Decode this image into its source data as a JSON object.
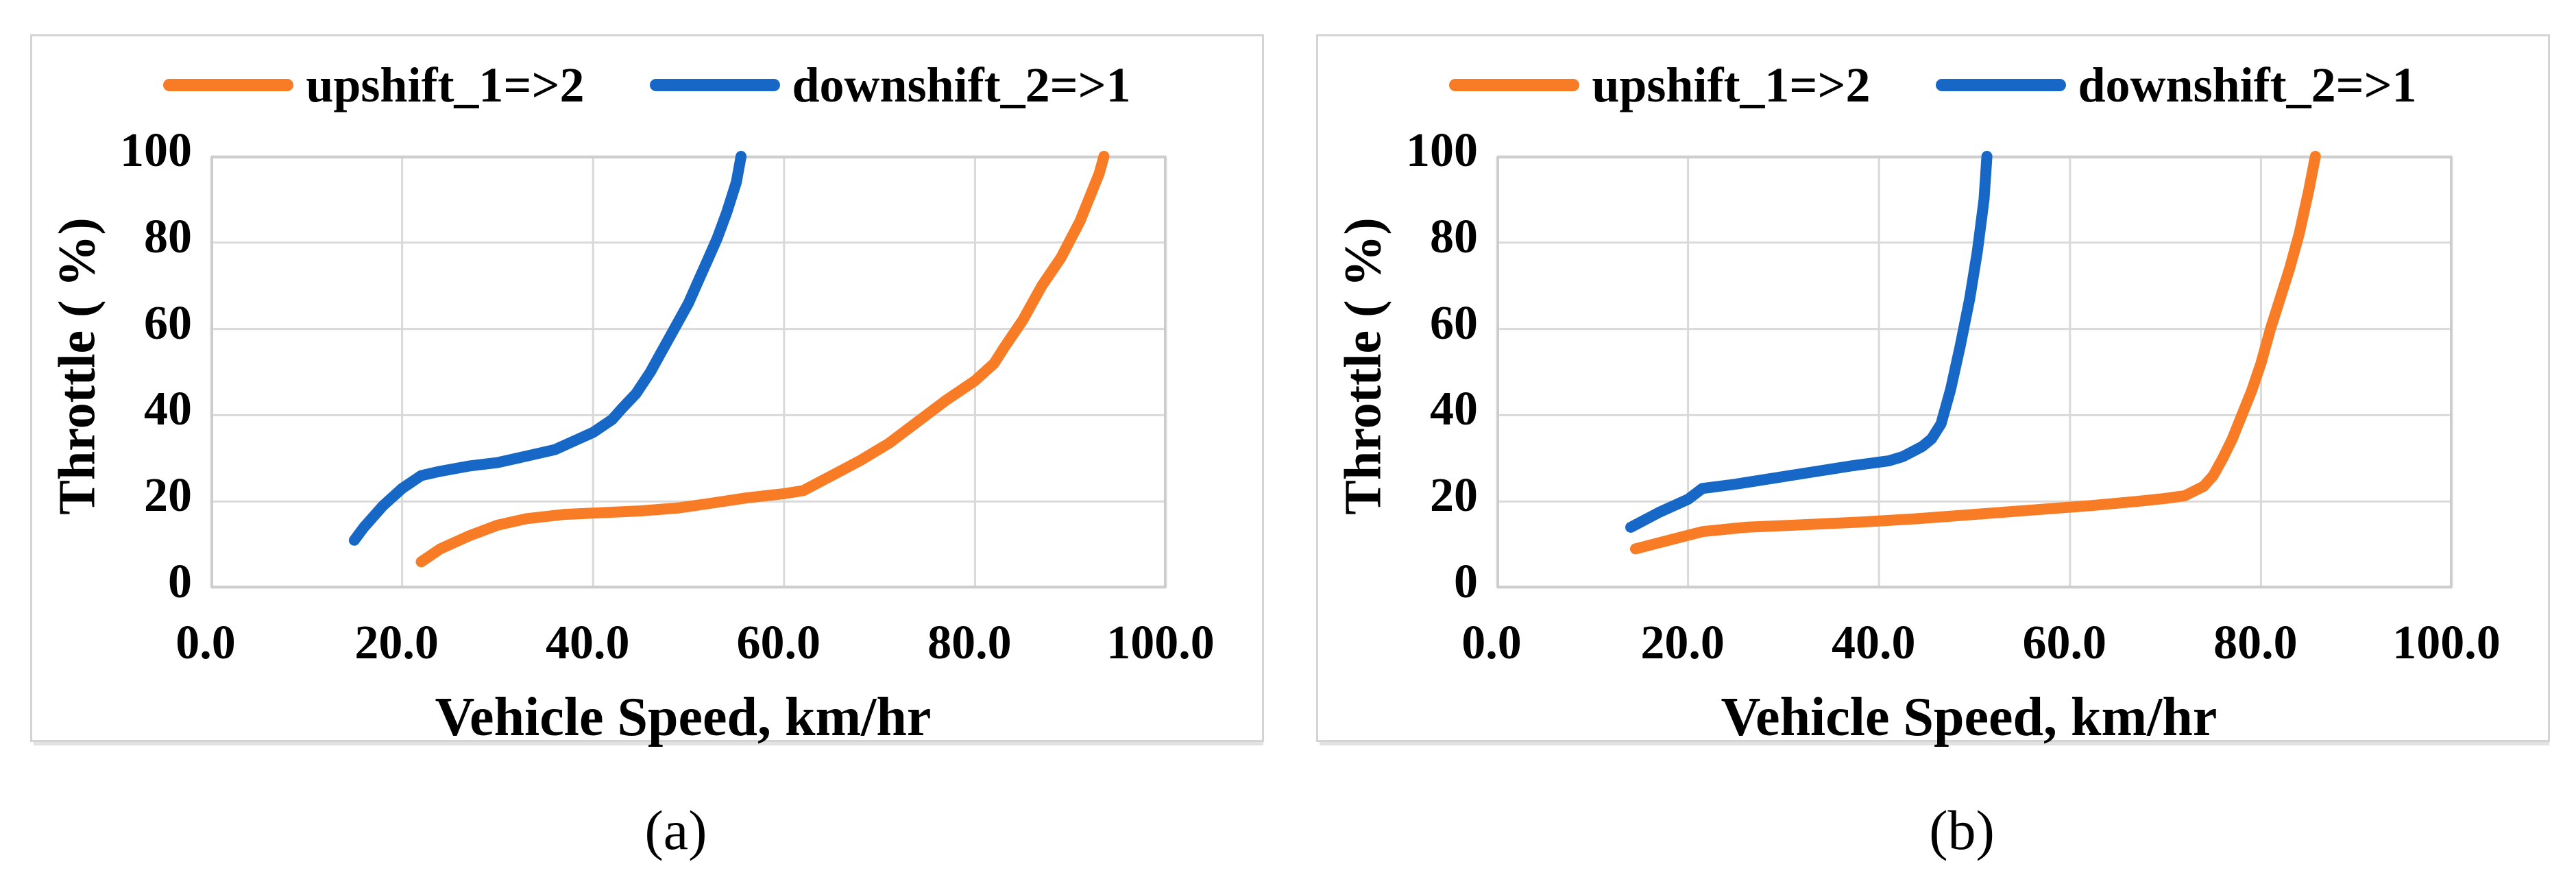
{
  "figure": {
    "panels": [
      {
        "id": "a",
        "caption": "(a)"
      },
      {
        "id": "b",
        "caption": "(b)"
      }
    ]
  },
  "chart_data": [
    {
      "type": "line",
      "title": "",
      "xlabel": "Vehicle Speed, km/hr",
      "ylabel": "Throttle ( %)",
      "xlim": [
        0,
        100
      ],
      "ylim": [
        0,
        100
      ],
      "xticks": [
        "0.0",
        "20.0",
        "40.0",
        "60.0",
        "80.0",
        "100.0"
      ],
      "yticks": [
        "0",
        "20",
        "40",
        "60",
        "80",
        "100"
      ],
      "grid": true,
      "grid_color": "#d9d9d9",
      "border_color": "#cccccc",
      "legend_position": "top",
      "series": [
        {
          "name": "upshift_1=>2",
          "color": "#f87c26",
          "points": [
            [
              22,
              6
            ],
            [
              24,
              9
            ],
            [
              27,
              12
            ],
            [
              30,
              14.5
            ],
            [
              33,
              16
            ],
            [
              37,
              17
            ],
            [
              41,
              17.4
            ],
            [
              45,
              17.8
            ],
            [
              49,
              18.5
            ],
            [
              53,
              19.8
            ],
            [
              56,
              20.8
            ],
            [
              58,
              21.3
            ],
            [
              60,
              21.8
            ],
            [
              62,
              22.5
            ],
            [
              65,
              26
            ],
            [
              68,
              29.5
            ],
            [
              71,
              33.5
            ],
            [
              74,
              38.5
            ],
            [
              77,
              43.5
            ],
            [
              80,
              48
            ],
            [
              82,
              52
            ],
            [
              83,
              55.5
            ],
            [
              85,
              62
            ],
            [
              87,
              70
            ],
            [
              89,
              76.5
            ],
            [
              91,
              85
            ],
            [
              93,
              96
            ],
            [
              93.5,
              100
            ]
          ]
        },
        {
          "name": "downshift_2=>1",
          "color": "#1767c6",
          "points": [
            [
              15,
              11
            ],
            [
              16,
              14
            ],
            [
              18,
              19
            ],
            [
              20,
              23
            ],
            [
              22,
              26
            ],
            [
              24,
              27
            ],
            [
              27,
              28.2
            ],
            [
              30,
              29
            ],
            [
              33,
              30.5
            ],
            [
              36,
              32
            ],
            [
              38,
              34
            ],
            [
              40,
              36
            ],
            [
              42,
              39
            ],
            [
              43,
              41.5
            ],
            [
              44.5,
              45
            ],
            [
              46,
              50
            ],
            [
              47,
              54
            ],
            [
              48,
              58
            ],
            [
              49,
              62
            ],
            [
              50,
              66
            ],
            [
              51,
              71
            ],
            [
              52,
              76
            ],
            [
              53,
              81
            ],
            [
              54,
              87
            ],
            [
              55,
              94
            ],
            [
              55.5,
              100
            ]
          ]
        }
      ]
    },
    {
      "type": "line",
      "title": "",
      "xlabel": "Vehicle Speed, km/hr",
      "ylabel": "Throttle ( %)",
      "xlim": [
        0,
        100
      ],
      "ylim": [
        0,
        100
      ],
      "xticks": [
        "0.0",
        "20.0",
        "40.0",
        "60.0",
        "80.0",
        "100.0"
      ],
      "yticks": [
        "0",
        "20",
        "40",
        "60",
        "80",
        "100"
      ],
      "grid": true,
      "grid_color": "#d9d9d9",
      "border_color": "#cccccc",
      "legend_position": "top",
      "series": [
        {
          "name": "upshift_1=>2",
          "color": "#f87c26",
          "points": [
            [
              14.5,
              9
            ],
            [
              18,
              11
            ],
            [
              21.5,
              13
            ],
            [
              26,
              14
            ],
            [
              32,
              14.6
            ],
            [
              38,
              15.2
            ],
            [
              44,
              16
            ],
            [
              50,
              17
            ],
            [
              56,
              18
            ],
            [
              62,
              19
            ],
            [
              67,
              20
            ],
            [
              70,
              20.7
            ],
            [
              72,
              21.3
            ],
            [
              74,
              23.5
            ],
            [
              75,
              26
            ],
            [
              76,
              30
            ],
            [
              77,
              34.5
            ],
            [
              78,
              40
            ],
            [
              79,
              45.5
            ],
            [
              80,
              52
            ],
            [
              81,
              60
            ],
            [
              82,
              67
            ],
            [
              83,
              74
            ],
            [
              84,
              82
            ],
            [
              85,
              92
            ],
            [
              85.7,
              100
            ]
          ]
        },
        {
          "name": "downshift_2=>1",
          "color": "#1767c6",
          "points": [
            [
              14,
              14
            ],
            [
              17,
              17.5
            ],
            [
              20,
              20.5
            ],
            [
              21.5,
              23
            ],
            [
              25,
              24
            ],
            [
              29,
              25.4
            ],
            [
              33,
              26.8
            ],
            [
              37,
              28.2
            ],
            [
              41,
              29.4
            ],
            [
              42.5,
              30.4
            ],
            [
              44.5,
              32.7
            ],
            [
              45.5,
              34.5
            ],
            [
              46.5,
              38
            ],
            [
              47.5,
              46
            ],
            [
              48.5,
              56
            ],
            [
              49.5,
              67
            ],
            [
              50.3,
              78
            ],
            [
              51,
              90
            ],
            [
              51.3,
              100
            ]
          ]
        }
      ]
    }
  ]
}
